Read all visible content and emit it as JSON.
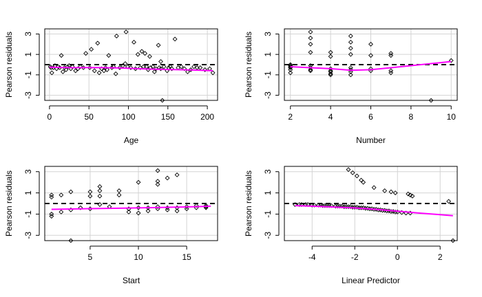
{
  "colors": {
    "smooth": "#ff00ff",
    "grid": "#d3d3d3",
    "ink": "#000000",
    "background": "#ffffff"
  },
  "chart_data": [
    {
      "type": "scatter",
      "xlabel": "Age",
      "ylabel": "Pearson residuals",
      "xlim": [
        -6,
        213
      ],
      "ylim": [
        -3.5,
        3.5
      ],
      "xticks": [
        "0",
        "50",
        "100",
        "150",
        "200"
      ],
      "yticks": [
        "-3",
        "-1",
        "1",
        "3"
      ],
      "grid": true,
      "reference_line": {
        "y": 0,
        "style": "dashed"
      },
      "points": [
        [
          1,
          -0.2
        ],
        [
          2,
          -0.3
        ],
        [
          3,
          -0.8
        ],
        [
          5,
          -0.3
        ],
        [
          7,
          -0.1
        ],
        [
          9,
          -0.4
        ],
        [
          11,
          -0.2
        ],
        [
          13,
          -0.3
        ],
        [
          15,
          0.9
        ],
        [
          17,
          -0.7
        ],
        [
          19,
          -0.3
        ],
        [
          21,
          -0.5
        ],
        [
          23,
          -0.2
        ],
        [
          25,
          -0.1
        ],
        [
          27,
          -0.4
        ],
        [
          29,
          -0.2
        ],
        [
          33,
          -0.6
        ],
        [
          36,
          -0.4
        ],
        [
          39,
          -0.2
        ],
        [
          43,
          -0.3
        ],
        [
          46,
          1.1
        ],
        [
          51,
          -0.3
        ],
        [
          53,
          1.5
        ],
        [
          57,
          -0.6
        ],
        [
          61,
          2.1
        ],
        [
          63,
          -0.8
        ],
        [
          66,
          -0.4
        ],
        [
          69,
          -0.6
        ],
        [
          71,
          -0.3
        ],
        [
          73,
          -0.5
        ],
        [
          75,
          0.9
        ],
        [
          79,
          -0.3
        ],
        [
          81,
          -0.2
        ],
        [
          84,
          -0.9
        ],
        [
          85,
          2.8
        ],
        [
          89,
          -0.3
        ],
        [
          93,
          -0.1
        ],
        [
          96,
          0.1
        ],
        [
          97,
          3.2
        ],
        [
          99,
          -0.2
        ],
        [
          103,
          -0.3
        ],
        [
          107,
          2.2
        ],
        [
          109,
          -0.4
        ],
        [
          112,
          1.0
        ],
        [
          115,
          -0.3
        ],
        [
          117,
          1.3
        ],
        [
          119,
          -0.2
        ],
        [
          121,
          1.1
        ],
        [
          123,
          -0.2
        ],
        [
          125,
          -0.5
        ],
        [
          127,
          0.8
        ],
        [
          128,
          -0.3
        ],
        [
          131,
          -0.2
        ],
        [
          133,
          -0.7
        ],
        [
          135,
          -0.4
        ],
        [
          138,
          1.9
        ],
        [
          139,
          -0.3
        ],
        [
          141,
          0.3
        ],
        [
          141,
          -0.4
        ],
        [
          143,
          -3.5
        ],
        [
          145,
          -0.2
        ],
        [
          149,
          -0.6
        ],
        [
          151,
          -0.3
        ],
        [
          153,
          -0.2
        ],
        [
          155,
          -0.4
        ],
        [
          159,
          2.5
        ],
        [
          163,
          -0.3
        ],
        [
          167,
          -0.2
        ],
        [
          171,
          -0.4
        ],
        [
          175,
          -0.7
        ],
        [
          179,
          -0.5
        ],
        [
          183,
          -0.2
        ],
        [
          187,
          -0.3
        ],
        [
          191,
          -0.3
        ],
        [
          197,
          -0.5
        ],
        [
          203,
          -0.4
        ],
        [
          207,
          -0.8
        ]
      ],
      "smooth": [
        [
          0,
          -0.25
        ],
        [
          30,
          -0.3
        ],
        [
          60,
          -0.28
        ],
        [
          90,
          -0.33
        ],
        [
          120,
          -0.42
        ],
        [
          150,
          -0.48
        ],
        [
          180,
          -0.52
        ],
        [
          207,
          -0.6
        ]
      ]
    },
    {
      "type": "scatter",
      "xlabel": "Number",
      "ylabel": "Pearson residuals",
      "xlim": [
        1.7,
        10.3
      ],
      "ylim": [
        -3.5,
        3.5
      ],
      "xticks": [
        "2",
        "4",
        "6",
        "8",
        "10"
      ],
      "yticks": [
        "-3",
        "-1",
        "1",
        "3"
      ],
      "grid": true,
      "reference_line": {
        "y": 0,
        "style": "dashed"
      },
      "points": [
        [
          2,
          -0.8
        ],
        [
          2,
          -0.5
        ],
        [
          2,
          -0.3
        ],
        [
          2,
          -0.2
        ],
        [
          2,
          -0.1
        ],
        [
          2,
          0.0
        ],
        [
          3,
          3.2
        ],
        [
          3,
          2.6
        ],
        [
          3,
          2.0
        ],
        [
          3,
          1.2
        ],
        [
          3,
          -0.1
        ],
        [
          3,
          -0.3
        ],
        [
          3,
          -0.5
        ],
        [
          3,
          -0.6
        ],
        [
          4,
          1.2
        ],
        [
          4,
          0.8
        ],
        [
          4,
          -0.4
        ],
        [
          4,
          -0.6
        ],
        [
          4,
          -0.7
        ],
        [
          4,
          -0.9
        ],
        [
          4,
          -1.0
        ],
        [
          5,
          2.8
        ],
        [
          5,
          2.2
        ],
        [
          5,
          1.6
        ],
        [
          5,
          1.0
        ],
        [
          5,
          -0.3
        ],
        [
          5,
          -0.5
        ],
        [
          5,
          -0.7
        ],
        [
          5,
          -1.0
        ],
        [
          6,
          2.0
        ],
        [
          6,
          0.9
        ],
        [
          6,
          -0.4
        ],
        [
          6,
          -0.6
        ],
        [
          7,
          1.1
        ],
        [
          7,
          0.9
        ],
        [
          7,
          -0.6
        ],
        [
          7,
          -0.8
        ],
        [
          9,
          -3.5
        ],
        [
          10,
          0.4
        ]
      ],
      "smooth": [
        [
          2,
          -0.2
        ],
        [
          3,
          -0.3
        ],
        [
          4,
          -0.4
        ],
        [
          5,
          -0.55
        ],
        [
          6,
          -0.5
        ],
        [
          7,
          -0.3
        ],
        [
          8,
          -0.1
        ],
        [
          9,
          0.1
        ],
        [
          10,
          0.3
        ]
      ]
    },
    {
      "type": "scatter",
      "xlabel": "Start",
      "ylabel": "Pearson residuals",
      "xlim": [
        0.3,
        18.2
      ],
      "ylim": [
        -3.5,
        3.5
      ],
      "xticks": [
        "5",
        "10",
        "15"
      ],
      "yticks": [
        "-3",
        "-1",
        "1",
        "3"
      ],
      "grid": true,
      "reference_line": {
        "y": 0,
        "style": "dashed"
      },
      "points": [
        [
          1,
          0.8
        ],
        [
          1,
          0.6
        ],
        [
          1,
          -1.0
        ],
        [
          1,
          -1.2
        ],
        [
          2,
          0.8
        ],
        [
          2,
          -0.8
        ],
        [
          3,
          -3.5
        ],
        [
          3,
          1.1
        ],
        [
          3,
          -0.6
        ],
        [
          4,
          -0.4
        ],
        [
          5,
          1.1
        ],
        [
          5,
          0.7
        ],
        [
          5,
          -0.5
        ],
        [
          6,
          1.6
        ],
        [
          6,
          1.2
        ],
        [
          6,
          0.7
        ],
        [
          6,
          -0.1
        ],
        [
          7,
          -0.3
        ],
        [
          8,
          1.2
        ],
        [
          8,
          0.8
        ],
        [
          9,
          -0.5
        ],
        [
          9,
          -0.8
        ],
        [
          10,
          2.0
        ],
        [
          10,
          -0.4
        ],
        [
          10,
          -0.9
        ],
        [
          11,
          -0.4
        ],
        [
          11,
          -0.7
        ],
        [
          12,
          3.1
        ],
        [
          12,
          2.1
        ],
        [
          12,
          1.8
        ],
        [
          12,
          -0.3
        ],
        [
          12,
          -0.5
        ],
        [
          13,
          2.4
        ],
        [
          13,
          -0.4
        ],
        [
          13,
          -0.6
        ],
        [
          14,
          2.7
        ],
        [
          14,
          -0.4
        ],
        [
          14,
          -0.7
        ],
        [
          15,
          -0.3
        ],
        [
          15,
          -0.5
        ],
        [
          16,
          -0.2
        ],
        [
          16,
          -0.4
        ],
        [
          17,
          -0.2
        ],
        [
          17,
          -0.4
        ],
        [
          17,
          -0.3
        ]
      ],
      "smooth": [
        [
          1,
          -0.55
        ],
        [
          4,
          -0.5
        ],
        [
          8,
          -0.45
        ],
        [
          12,
          -0.38
        ],
        [
          16,
          -0.3
        ],
        [
          17.5,
          -0.25
        ]
      ]
    },
    {
      "type": "scatter",
      "xlabel": "Linear Predictor",
      "ylabel": "Pearson residuals",
      "xlim": [
        -5.3,
        2.8
      ],
      "ylim": [
        -3.5,
        3.5
      ],
      "xticks": [
        "-4",
        "-2",
        "0",
        "2"
      ],
      "yticks": [
        "-3",
        "-1",
        "1",
        "3"
      ],
      "grid": true,
      "reference_line": {
        "y": 0,
        "style": "dashed"
      },
      "points": [
        [
          -4.8,
          -0.1
        ],
        [
          -4.6,
          -0.1
        ],
        [
          -4.5,
          -0.1
        ],
        [
          -4.3,
          -0.1
        ],
        [
          -4.2,
          -0.1
        ],
        [
          -4.0,
          -0.15
        ],
        [
          -3.9,
          -0.15
        ],
        [
          -3.7,
          -0.15
        ],
        [
          -3.6,
          -0.15
        ],
        [
          -3.5,
          -0.2
        ],
        [
          -3.4,
          -0.2
        ],
        [
          -3.3,
          -0.2
        ],
        [
          -3.2,
          -0.2
        ],
        [
          -3.1,
          -0.2
        ],
        [
          -2.9,
          -0.25
        ],
        [
          -2.8,
          -0.25
        ],
        [
          -2.7,
          -0.25
        ],
        [
          -2.6,
          -0.25
        ],
        [
          -2.5,
          -0.3
        ],
        [
          -2.4,
          -0.3
        ],
        [
          -2.3,
          -0.3
        ],
        [
          -2.2,
          -0.3
        ],
        [
          -2.1,
          -0.35
        ],
        [
          -2.0,
          -0.35
        ],
        [
          -1.9,
          -0.35
        ],
        [
          -1.8,
          -0.4
        ],
        [
          -1.7,
          -0.4
        ],
        [
          -1.6,
          -0.4
        ],
        [
          -1.5,
          -0.45
        ],
        [
          -1.4,
          -0.45
        ],
        [
          -1.3,
          -0.5
        ],
        [
          -1.2,
          -0.5
        ],
        [
          -1.1,
          -0.55
        ],
        [
          -1.0,
          -0.55
        ],
        [
          -0.9,
          -0.6
        ],
        [
          -0.8,
          -0.6
        ],
        [
          -0.7,
          -0.65
        ],
        [
          -0.6,
          -0.65
        ],
        [
          -0.5,
          -0.7
        ],
        [
          -0.4,
          -0.7
        ],
        [
          -0.3,
          -0.75
        ],
        [
          -0.2,
          -0.75
        ],
        [
          -0.1,
          -0.8
        ],
        [
          0.0,
          -0.8
        ],
        [
          0.2,
          -0.85
        ],
        [
          0.4,
          -0.9
        ],
        [
          0.6,
          -0.9
        ],
        [
          -2.3,
          3.2
        ],
        [
          -2.1,
          2.9
        ],
        [
          -1.9,
          2.6
        ],
        [
          -1.7,
          2.2
        ],
        [
          -1.6,
          2.0
        ],
        [
          -1.1,
          1.5
        ],
        [
          -0.6,
          1.2
        ],
        [
          -0.3,
          1.1
        ],
        [
          -0.1,
          1.0
        ],
        [
          0.5,
          0.9
        ],
        [
          0.6,
          0.8
        ],
        [
          0.7,
          0.7
        ],
        [
          2.4,
          0.2
        ],
        [
          2.6,
          -3.5
        ]
      ],
      "smooth": [
        [
          -4.8,
          -0.2
        ],
        [
          -4,
          -0.25
        ],
        [
          -3,
          -0.33
        ],
        [
          -2,
          -0.42
        ],
        [
          -1,
          -0.55
        ],
        [
          0,
          -0.72
        ],
        [
          1,
          -0.9
        ],
        [
          2,
          -1.05
        ],
        [
          2.6,
          -1.15
        ]
      ]
    }
  ]
}
